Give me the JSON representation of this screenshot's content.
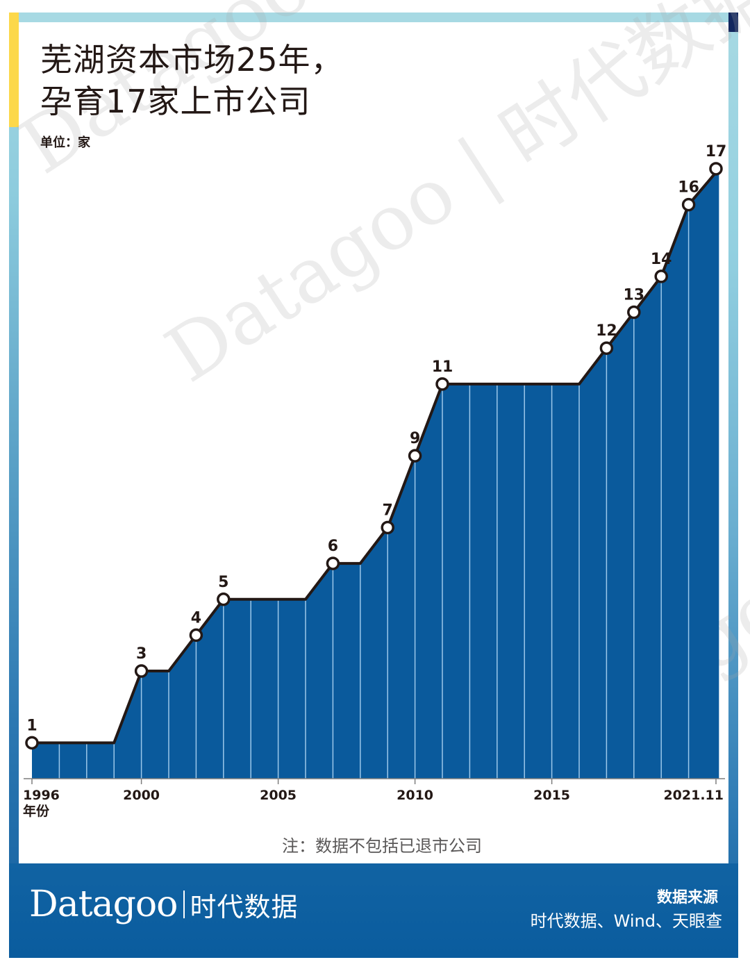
{
  "title": {
    "line1": "芜湖资本市场25年，",
    "line2": "孕育17家上市公司"
  },
  "unit_label": "单位：家",
  "note": "注：数据不包括已退市公司",
  "footer": {
    "brand_latin": "Datagoo",
    "brand_cn": "时代数据",
    "source_title": "数据来源",
    "source_text": "时代数据、Wind、天眼查"
  },
  "watermark": "Datagoo | 时代数据",
  "axis": {
    "x_ticks": [
      {
        "label": "1996",
        "x": 1996
      },
      {
        "label": "2000",
        "x": 2000
      },
      {
        "label": "2005",
        "x": 2005
      },
      {
        "label": "2010",
        "x": 2010
      },
      {
        "label": "2015",
        "x": 2015
      },
      {
        "label": "2021.11",
        "x": 2021
      }
    ],
    "x_title": "年份"
  },
  "colors": {
    "area_fill": "#0a5a9c",
    "line": "#231815",
    "grid": "#9cc8ea",
    "marker_fill": "#ffffff",
    "frame_cyan": "#a7d9e3",
    "frame_yellow": "#fcd84a",
    "frame_navy": "#13275e",
    "frame_teal": "#16a3a8"
  },
  "chart_data": {
    "type": "area",
    "title": "芜湖资本市场25年，孕育17家上市公司",
    "unit": "家",
    "xlabel": "年份",
    "ylabel": "",
    "x": [
      1996,
      1997,
      1998,
      1999,
      2000,
      2001,
      2002,
      2003,
      2004,
      2005,
      2006,
      2007,
      2008,
      2009,
      2010,
      2011,
      2012,
      2013,
      2014,
      2015,
      2016,
      2017,
      2018,
      2019,
      2020,
      "2021.11"
    ],
    "values": [
      1,
      1,
      1,
      1,
      3,
      3,
      4,
      5,
      5,
      5,
      5,
      6,
      6,
      7,
      9,
      11,
      11,
      11,
      11,
      11,
      11,
      12,
      13,
      14,
      16,
      17
    ],
    "labeled_points": [
      {
        "x": 1996,
        "value": 1
      },
      {
        "x": 2000,
        "value": 3
      },
      {
        "x": 2002,
        "value": 4
      },
      {
        "x": 2003,
        "value": 5
      },
      {
        "x": 2007,
        "value": 6
      },
      {
        "x": 2009,
        "value": 7
      },
      {
        "x": 2010,
        "value": 9
      },
      {
        "x": 2011,
        "value": 11
      },
      {
        "x": 2017,
        "value": 12
      },
      {
        "x": 2018,
        "value": 13
      },
      {
        "x": 2019,
        "value": 14
      },
      {
        "x": 2020,
        "value": 16
      },
      {
        "x": "2021.11",
        "value": 17
      }
    ],
    "tick_labels": [
      "1996",
      "2000",
      "2005",
      "2010",
      "2015",
      "2021.11"
    ],
    "ylim": [
      0,
      17
    ],
    "grid": "vertical yearly lines",
    "legend": "none",
    "annotation": "注：数据不包括已退市公司",
    "source": "时代数据、Wind、天眼查"
  }
}
